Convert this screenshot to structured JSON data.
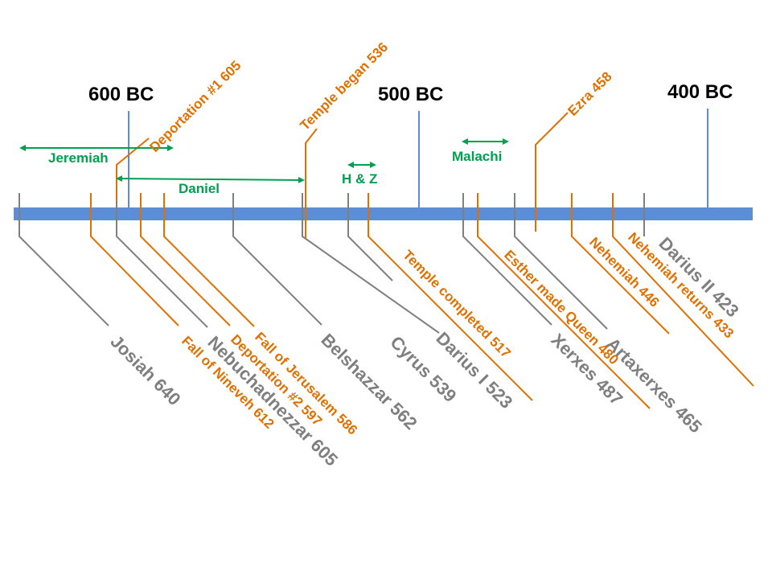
{
  "colors": {
    "axis": "#5b8ed6",
    "gray": "#7f7f7f",
    "orange": "#e07000",
    "green": "#00a050",
    "century_marker": "#5b8ed6",
    "century_text": "#000000"
  },
  "centuries": [
    "600 BC",
    "500 BC",
    "400 BC"
  ],
  "people": [
    "Josiah  640",
    "Nebuchadnezzar 605",
    "Belshazzar  562",
    "Cyrus  539",
    "Darius I  523",
    "Xerxes  487",
    "Artaxerxes  465",
    "Darius II  423"
  ],
  "events_below": [
    "Fall of Nineveh  612",
    "Deportation #2  597",
    "Fall of Jerusalem  586",
    "Temple completed  517",
    "Esther made Queen  480",
    "Nehemiah  446",
    "Nehemiah  returns  433"
  ],
  "events_above": [
    "Deportation #1  605",
    "Temple began  536",
    "Ezra  458"
  ],
  "prophets": [
    "Jeremiah",
    "Daniel",
    "H & Z",
    "Malachi"
  ]
}
